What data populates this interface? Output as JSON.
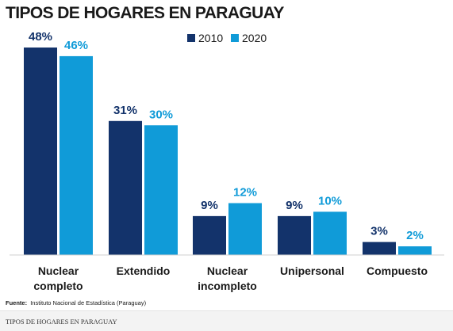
{
  "chart_data": {
    "type": "bar",
    "title": "TIPOS DE HOGARES EN PARAGUAY",
    "categories": [
      [
        "Nuclear",
        "completo"
      ],
      [
        "Extendido"
      ],
      [
        "Nuclear",
        "incompleto"
      ],
      [
        "Unipersonal"
      ],
      [
        "Compuesto"
      ]
    ],
    "series": [
      {
        "name": "2010",
        "color": "#13336b",
        "values": [
          48,
          31,
          9,
          9,
          3
        ],
        "labels": [
          "48%",
          "31%",
          "9%",
          "9%",
          "3%"
        ]
      },
      {
        "name": "2020",
        "color": "#109bd8",
        "values": [
          46,
          30,
          12,
          10,
          2
        ],
        "labels": [
          "46%",
          "30%",
          "12%",
          "10%",
          "2%"
        ]
      }
    ],
    "ylim": [
      0,
      48
    ],
    "grid": false,
    "legend_position": "top-right",
    "source_label": "Fuente:",
    "source_text": "Instituto Nacional de Estadística (Paraguay)"
  },
  "caption": "TIPOS DE HOGARES EN PARAGUAY"
}
